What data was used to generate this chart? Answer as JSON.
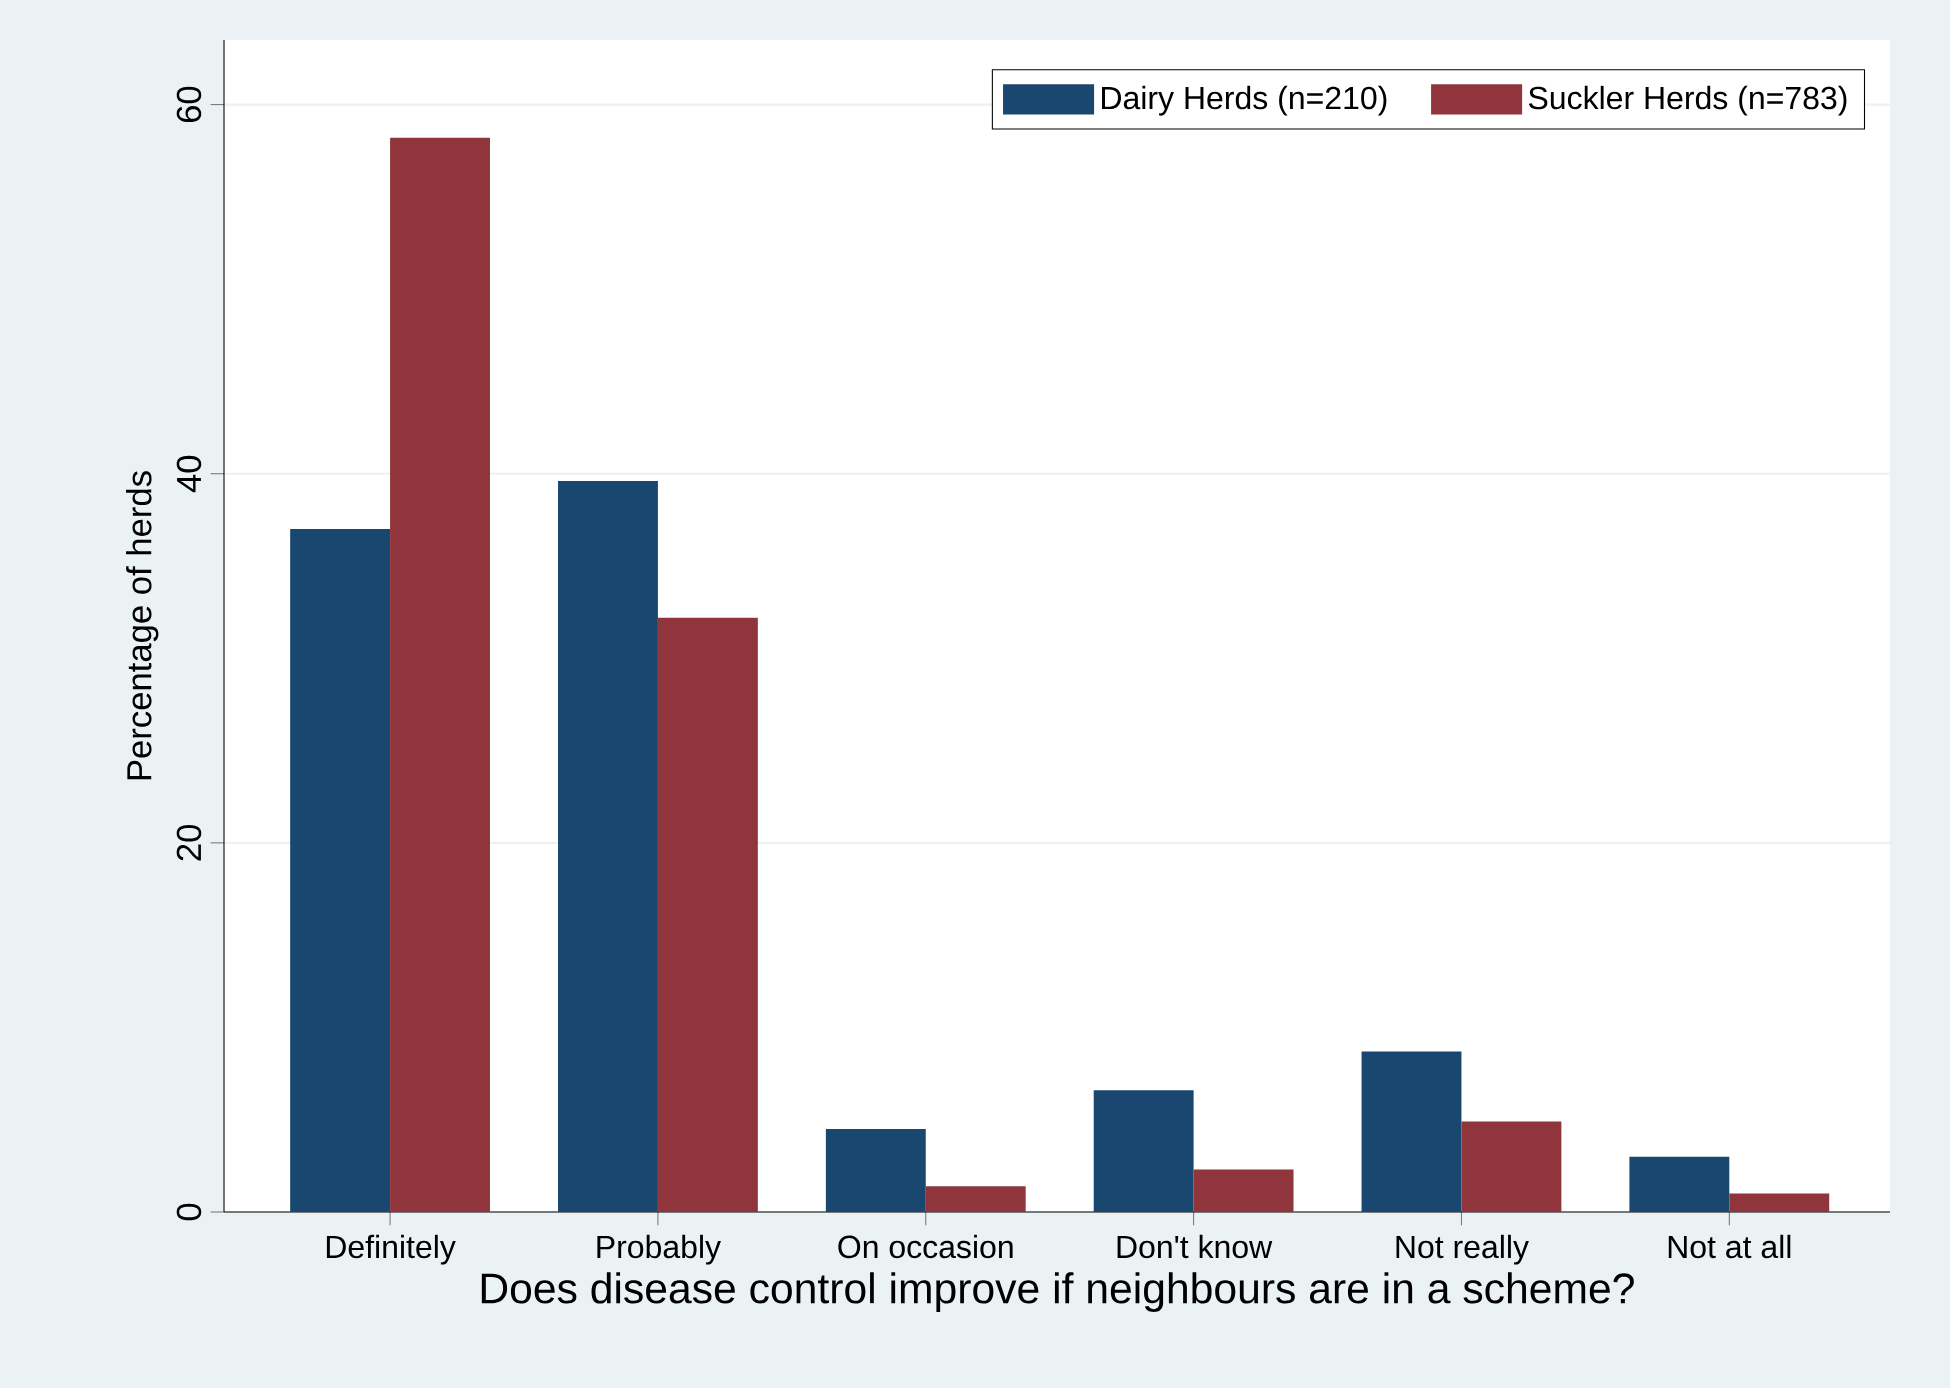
{
  "chart_data": {
    "type": "bar",
    "xlabel": "Does disease control improve if neighbours are in a scheme?",
    "ylabel": "Percentage of herds",
    "categories": [
      "Definitely",
      "Probably",
      "On occasion",
      "Don't know",
      "Not really",
      "Not at all"
    ],
    "series": [
      {
        "name": "Dairy Herds (n=210)",
        "color": "#1a476f",
        "values": [
          37.0,
          39.6,
          4.5,
          6.6,
          8.7,
          3.0
        ]
      },
      {
        "name": "Suckler Herds (n=783)",
        "color": "#90353b",
        "values": [
          58.2,
          32.2,
          1.4,
          2.3,
          4.9,
          1.0
        ]
      }
    ],
    "ylim": [
      0,
      63.5
    ],
    "yticks": [
      0,
      20,
      40,
      60
    ],
    "grid": "y",
    "legend": "top right"
  }
}
